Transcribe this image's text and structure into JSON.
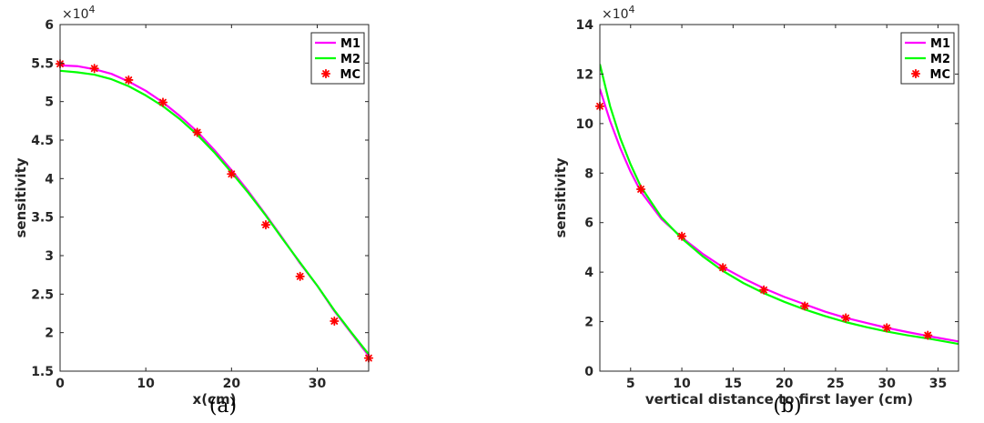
{
  "chart_data": [
    {
      "type": "line",
      "caption": "(a)",
      "xlabel": "x(cm)",
      "ylabel": "sensitivity",
      "y_exponent": "×10",
      "y_exponent_power": "4",
      "xlim": [
        0,
        36
      ],
      "ylim": [
        1.5,
        6
      ],
      "xticks": [
        0,
        10,
        20,
        30
      ],
      "xtick_labels": [
        "0",
        "10",
        "20",
        "30"
      ],
      "yticks": [
        1.5,
        2,
        2.5,
        3,
        3.5,
        4,
        4.5,
        5,
        5.5,
        6
      ],
      "ytick_labels": [
        "1.5",
        "2",
        "2.5",
        "3",
        "3.5",
        "4",
        "4.5",
        "5",
        "5.5",
        "6"
      ],
      "grid": false,
      "legend": "top-right",
      "series": [
        {
          "name": "M1",
          "kind": "line",
          "color": "#ff00ff",
          "x": [
            0,
            2,
            4,
            6,
            8,
            10,
            12,
            14,
            16,
            18,
            20,
            22,
            24,
            26,
            28,
            30,
            32,
            34,
            36
          ],
          "y": [
            5.47,
            5.46,
            5.42,
            5.36,
            5.26,
            5.14,
            4.99,
            4.81,
            4.61,
            4.37,
            4.11,
            3.83,
            3.53,
            3.22,
            2.9,
            2.61,
            2.28,
            1.99,
            1.7
          ]
        },
        {
          "name": "M2",
          "kind": "line",
          "color": "#00ff00",
          "x": [
            0,
            2,
            4,
            6,
            8,
            10,
            12,
            14,
            16,
            18,
            20,
            22,
            24,
            26,
            28,
            30,
            32,
            34,
            36
          ],
          "y": [
            5.4,
            5.38,
            5.35,
            5.29,
            5.2,
            5.08,
            4.94,
            4.77,
            4.57,
            4.34,
            4.08,
            3.81,
            3.52,
            3.21,
            2.91,
            2.61,
            2.29,
            2.0,
            1.72
          ]
        },
        {
          "name": "MC",
          "kind": "marker",
          "color": "#ff0000",
          "x": [
            0,
            4,
            8,
            12,
            16,
            20,
            24,
            28,
            32,
            36
          ],
          "y": [
            5.49,
            5.43,
            5.28,
            4.99,
            4.6,
            4.06,
            3.4,
            2.73,
            2.15,
            1.67
          ]
        }
      ]
    },
    {
      "type": "line",
      "caption": "(b)",
      "xlabel": "vertical distance to first layer (cm)",
      "ylabel": "sensitivity",
      "y_exponent": "×10",
      "y_exponent_power": "4",
      "xlim": [
        2,
        37
      ],
      "ylim": [
        0,
        14
      ],
      "xticks": [
        5,
        10,
        15,
        20,
        25,
        30,
        35
      ],
      "xtick_labels": [
        "5",
        "10",
        "15",
        "20",
        "25",
        "30",
        "35"
      ],
      "yticks": [
        0,
        2,
        4,
        6,
        8,
        10,
        12,
        14
      ],
      "ytick_labels": [
        "0",
        "2",
        "4",
        "6",
        "8",
        "10",
        "12",
        "14"
      ],
      "grid": false,
      "legend": "top-right",
      "series": [
        {
          "name": "M1",
          "kind": "line",
          "color": "#ff00ff",
          "x": [
            2,
            3,
            4,
            5,
            6,
            8,
            10,
            12,
            14,
            16,
            18,
            20,
            22,
            24,
            26,
            28,
            30,
            32,
            34,
            37
          ],
          "y": [
            11.4,
            10.1,
            9.0,
            8.05,
            7.25,
            6.15,
            5.4,
            4.75,
            4.2,
            3.75,
            3.35,
            3.0,
            2.7,
            2.4,
            2.15,
            1.95,
            1.75,
            1.58,
            1.42,
            1.2
          ]
        },
        {
          "name": "M2",
          "kind": "line",
          "color": "#00ff00",
          "x": [
            2,
            3,
            4,
            5,
            6,
            8,
            10,
            12,
            14,
            16,
            18,
            20,
            22,
            24,
            26,
            28,
            30,
            32,
            34,
            37
          ],
          "y": [
            12.4,
            10.7,
            9.4,
            8.35,
            7.45,
            6.22,
            5.36,
            4.65,
            4.05,
            3.56,
            3.15,
            2.8,
            2.49,
            2.22,
            1.98,
            1.78,
            1.6,
            1.45,
            1.32,
            1.1
          ]
        },
        {
          "name": "MC",
          "kind": "marker",
          "color": "#ff0000",
          "x": [
            2,
            6,
            10,
            14,
            18,
            22,
            26,
            30,
            34
          ],
          "y": [
            10.7,
            7.35,
            5.45,
            4.18,
            3.28,
            2.63,
            2.15,
            1.75,
            1.45
          ]
        }
      ]
    }
  ]
}
